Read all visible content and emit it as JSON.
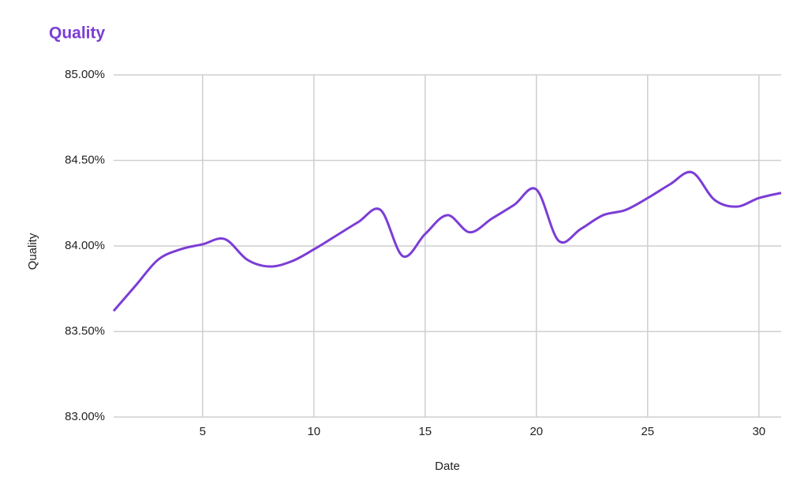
{
  "chart_data": {
    "type": "line",
    "title": "Quality",
    "x_label": "Date",
    "y_label": "Quality",
    "x": [
      1,
      2,
      3,
      4,
      5,
      6,
      7,
      8,
      9,
      10,
      11,
      12,
      13,
      14,
      15,
      16,
      17,
      18,
      19,
      20,
      21,
      22,
      23,
      24,
      25,
      26,
      27,
      28,
      29,
      30,
      31
    ],
    "series": [
      {
        "name": "Quality",
        "color": "#7b3dd6",
        "values": [
          83.62,
          83.77,
          83.92,
          83.98,
          84.01,
          84.04,
          83.92,
          83.88,
          83.91,
          83.98,
          84.06,
          84.14,
          84.21,
          83.94,
          84.07,
          84.18,
          84.08,
          84.16,
          84.24,
          84.33,
          84.03,
          84.1,
          84.18,
          84.21,
          84.28,
          84.36,
          84.43,
          84.27,
          84.23,
          84.28,
          84.31
        ]
      }
    ],
    "xlim": [
      1,
      31
    ],
    "xticks": [
      5,
      10,
      15,
      20,
      25,
      30
    ],
    "ylim": [
      83,
      85
    ],
    "yticks": [
      {
        "value": 83,
        "label": "83.00%"
      },
      {
        "value": 83.5,
        "label": "83.50%"
      },
      {
        "value": 84,
        "label": "84.00%"
      },
      {
        "value": 84.5,
        "label": "84.50%"
      },
      {
        "value": 85,
        "label": "85.00%"
      }
    ],
    "grid": true
  }
}
